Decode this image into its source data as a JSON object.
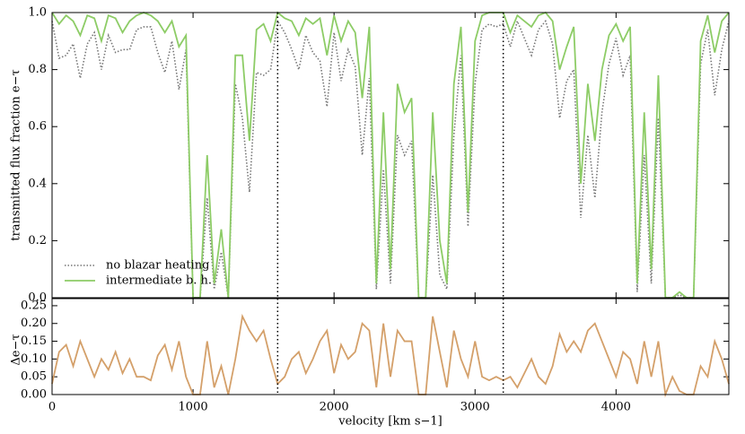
{
  "chart_data": [
    {
      "type": "line",
      "ylabel": "transmitted flux fraction e−τ",
      "x": [
        0,
        50,
        100,
        150,
        200,
        250,
        300,
        350,
        400,
        450,
        500,
        550,
        600,
        650,
        700,
        750,
        800,
        850,
        900,
        950,
        1000,
        1050,
        1100,
        1150,
        1200,
        1250,
        1300,
        1350,
        1400,
        1450,
        1500,
        1550,
        1600,
        1650,
        1700,
        1750,
        1800,
        1850,
        1900,
        1950,
        2000,
        2050,
        2100,
        2150,
        2200,
        2250,
        2300,
        2350,
        2400,
        2450,
        2500,
        2550,
        2600,
        2650,
        2700,
        2750,
        2800,
        2850,
        2900,
        2950,
        3000,
        3050,
        3100,
        3150,
        3200,
        3250,
        3300,
        3350,
        3400,
        3450,
        3500,
        3550,
        3600,
        3650,
        3700,
        3750,
        3800,
        3850,
        3900,
        3950,
        4000,
        4050,
        4100,
        4150,
        4200,
        4250,
        4300,
        4350,
        4400,
        4450,
        4500,
        4550,
        4600,
        4650,
        4700,
        4750,
        4800
      ],
      "series": [
        {
          "name": "no blazar heating",
          "color": "#777777",
          "dash": true,
          "values": [
            0.97,
            0.84,
            0.85,
            0.89,
            0.77,
            0.89,
            0.93,
            0.8,
            0.92,
            0.86,
            0.87,
            0.87,
            0.94,
            0.95,
            0.95,
            0.86,
            0.79,
            0.9,
            0.73,
            0.87,
            0.0,
            0.0,
            0.35,
            0.03,
            0.16,
            0.0,
            0.75,
            0.63,
            0.37,
            0.79,
            0.78,
            0.8,
            0.97,
            0.93,
            0.87,
            0.8,
            0.92,
            0.86,
            0.83,
            0.67,
            0.93,
            0.76,
            0.87,
            0.81,
            0.5,
            0.77,
            0.03,
            0.45,
            0.05,
            0.57,
            0.5,
            0.55,
            0.0,
            0.0,
            0.43,
            0.08,
            0.03,
            0.57,
            0.85,
            0.25,
            0.75,
            0.94,
            0.96,
            0.95,
            0.96,
            0.88,
            0.97,
            0.91,
            0.85,
            0.94,
            0.97,
            0.89,
            0.63,
            0.76,
            0.8,
            0.28,
            0.57,
            0.35,
            0.65,
            0.82,
            0.91,
            0.78,
            0.85,
            0.02,
            0.5,
            0.05,
            0.63,
            0.0,
            0.0,
            0.01,
            0.0,
            0.0,
            0.82,
            0.94,
            0.71,
            0.87,
            0.97
          ]
        },
        {
          "name": "intermediate b. h.",
          "color": "#8dcc66",
          "dash": false,
          "values": [
            1.0,
            0.96,
            0.99,
            0.97,
            0.92,
            0.99,
            0.98,
            0.9,
            0.99,
            0.98,
            0.93,
            0.97,
            0.99,
            1.0,
            0.99,
            0.97,
            0.93,
            0.97,
            0.88,
            0.92,
            0.0,
            0.0,
            0.5,
            0.05,
            0.24,
            0.0,
            0.85,
            0.85,
            0.55,
            0.94,
            0.96,
            0.9,
            1.0,
            0.98,
            0.97,
            0.92,
            0.98,
            0.96,
            0.98,
            0.85,
            0.99,
            0.9,
            0.97,
            0.93,
            0.7,
            0.95,
            0.05,
            0.65,
            0.1,
            0.75,
            0.65,
            0.7,
            0.0,
            0.0,
            0.65,
            0.2,
            0.05,
            0.75,
            0.95,
            0.3,
            0.9,
            0.99,
            1.0,
            1.0,
            1.0,
            0.93,
            0.99,
            0.97,
            0.95,
            0.99,
            1.0,
            0.97,
            0.8,
            0.88,
            0.95,
            0.4,
            0.75,
            0.55,
            0.8,
            0.92,
            0.96,
            0.9,
            0.95,
            0.05,
            0.65,
            0.1,
            0.78,
            0.0,
            0.0,
            0.02,
            0.0,
            0.0,
            0.9,
            0.99,
            0.86,
            0.97,
            1.0
          ]
        }
      ],
      "xlim": [
        0,
        4800
      ],
      "xticks": [
        0,
        1000,
        2000,
        3000,
        4000
      ],
      "ylim": [
        0,
        1
      ],
      "yticks": [
        {
          "value": 0,
          "label": "0.0"
        },
        {
          "value": 0.2,
          "label": "0.2"
        },
        {
          "value": 0.4,
          "label": "0.4"
        },
        {
          "value": 0.6,
          "label": "0.6"
        },
        {
          "value": 0.8,
          "label": "0.8"
        },
        {
          "value": 1,
          "label": "1.0"
        }
      ],
      "vlines": [
        1600,
        3200
      ],
      "legend": "lower left"
    },
    {
      "type": "line",
      "ylabel": "Δe−τ",
      "xlabel": "velocity [km s−1]",
      "x": [
        0,
        50,
        100,
        150,
        200,
        250,
        300,
        350,
        400,
        450,
        500,
        550,
        600,
        650,
        700,
        750,
        800,
        850,
        900,
        950,
        1000,
        1050,
        1100,
        1150,
        1200,
        1250,
        1300,
        1350,
        1400,
        1450,
        1500,
        1550,
        1600,
        1650,
        1700,
        1750,
        1800,
        1850,
        1900,
        1950,
        2000,
        2050,
        2100,
        2150,
        2200,
        2250,
        2300,
        2350,
        2400,
        2450,
        2500,
        2550,
        2600,
        2650,
        2700,
        2750,
        2800,
        2850,
        2900,
        2950,
        3000,
        3050,
        3100,
        3150,
        3200,
        3250,
        3300,
        3350,
        3400,
        3450,
        3500,
        3550,
        3600,
        3650,
        3700,
        3750,
        3800,
        3850,
        3900,
        3950,
        4000,
        4050,
        4100,
        4150,
        4200,
        4250,
        4300,
        4350,
        4400,
        4450,
        4500,
        4550,
        4600,
        4650,
        4700,
        4750,
        4800
      ],
      "series": [
        {
          "color": "#d4a06a",
          "values": [
            0.03,
            0.12,
            0.14,
            0.08,
            0.15,
            0.1,
            0.05,
            0.1,
            0.07,
            0.12,
            0.06,
            0.1,
            0.05,
            0.05,
            0.04,
            0.11,
            0.14,
            0.07,
            0.15,
            0.05,
            0.0,
            0.0,
            0.15,
            0.02,
            0.08,
            0.0,
            0.1,
            0.22,
            0.18,
            0.15,
            0.18,
            0.1,
            0.03,
            0.05,
            0.1,
            0.12,
            0.06,
            0.1,
            0.15,
            0.18,
            0.06,
            0.14,
            0.1,
            0.12,
            0.2,
            0.18,
            0.02,
            0.2,
            0.05,
            0.18,
            0.15,
            0.15,
            0.0,
            0.0,
            0.22,
            0.12,
            0.02,
            0.18,
            0.1,
            0.05,
            0.15,
            0.05,
            0.04,
            0.05,
            0.04,
            0.05,
            0.02,
            0.06,
            0.1,
            0.05,
            0.03,
            0.08,
            0.17,
            0.12,
            0.15,
            0.12,
            0.18,
            0.2,
            0.15,
            0.1,
            0.05,
            0.12,
            0.1,
            0.03,
            0.15,
            0.05,
            0.15,
            0.0,
            0.05,
            0.01,
            0.0,
            0.0,
            0.08,
            0.05,
            0.15,
            0.1,
            0.03
          ]
        }
      ],
      "xlim": [
        0,
        4800
      ],
      "xticks": [
        0,
        1000,
        2000,
        3000,
        4000
      ],
      "ylim": [
        0,
        0.27
      ],
      "yticks": [
        {
          "value": 0,
          "label": "0.00"
        },
        {
          "value": 0.05,
          "label": "0.05"
        },
        {
          "value": 0.1,
          "label": "0.10"
        },
        {
          "value": 0.15,
          "label": "0.15"
        },
        {
          "value": 0.2,
          "label": "0.20"
        },
        {
          "value": 0.25,
          "label": "0.25"
        }
      ],
      "vlines": [
        1600,
        3200
      ]
    }
  ]
}
